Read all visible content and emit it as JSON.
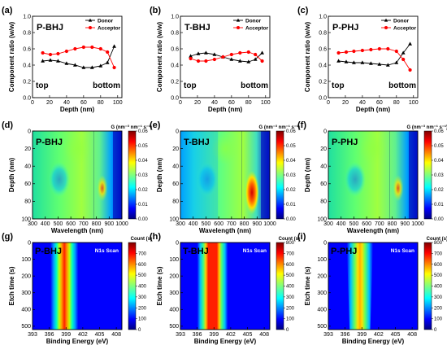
{
  "chart_data": [
    {
      "type": "line",
      "panel_letter": "(a)",
      "label": "P-BHJ",
      "region_labels": {
        "left": "top",
        "right": "bottom"
      },
      "xlabel": "Depth (nm)",
      "ylabel": "Component ratio (w/w)",
      "xlim": [
        0,
        105
      ],
      "ylim": [
        0,
        1
      ],
      "xticks": [
        "0",
        "20",
        "40",
        "60",
        "80",
        "100"
      ],
      "yticks": [
        "0.0",
        "0.2",
        "0.4",
        "0.6",
        "0.8",
        "1.0"
      ],
      "legend_position": "top-right",
      "series": [
        {
          "name": "Donor",
          "color": "#000000",
          "marker": "triangle",
          "points": [
            [
              12,
              0.45
            ],
            [
              21,
              0.46
            ],
            [
              30,
              0.45
            ],
            [
              40,
              0.42
            ],
            [
              50,
              0.4
            ],
            [
              60,
              0.37
            ],
            [
              70,
              0.37
            ],
            [
              80,
              0.39
            ],
            [
              88,
              0.43
            ],
            [
              96,
              0.63
            ]
          ]
        },
        {
          "name": "Acceptor",
          "color": "#ff0000",
          "marker": "circle",
          "points": [
            [
              12,
              0.55
            ],
            [
              21,
              0.53
            ],
            [
              30,
              0.54
            ],
            [
              40,
              0.57
            ],
            [
              50,
              0.6
            ],
            [
              60,
              0.62
            ],
            [
              70,
              0.62
            ],
            [
              80,
              0.6
            ],
            [
              88,
              0.56
            ],
            [
              96,
              0.37
            ]
          ]
        }
      ]
    },
    {
      "type": "line",
      "panel_letter": "(b)",
      "label": "T-BHJ",
      "region_labels": {
        "left": "top",
        "right": "bottom"
      },
      "xlabel": "Depth (nm)",
      "ylabel": "Component ratio (w/w)",
      "xlim": [
        0,
        105
      ],
      "ylim": [
        0,
        1
      ],
      "xticks": [
        "0",
        "20",
        "40",
        "60",
        "80",
        "100"
      ],
      "yticks": [
        "0.0",
        "0.2",
        "0.4",
        "0.6",
        "0.8",
        "1.0"
      ],
      "legend_position": "top-right",
      "series": [
        {
          "name": "Donor",
          "color": "#000000",
          "marker": "triangle",
          "points": [
            [
              12,
              0.51
            ],
            [
              21,
              0.54
            ],
            [
              30,
              0.55
            ],
            [
              40,
              0.53
            ],
            [
              50,
              0.5
            ],
            [
              60,
              0.47
            ],
            [
              70,
              0.45
            ],
            [
              80,
              0.44
            ],
            [
              88,
              0.47
            ],
            [
              96,
              0.55
            ]
          ]
        },
        {
          "name": "Acceptor",
          "color": "#ff0000",
          "marker": "circle",
          "points": [
            [
              12,
              0.48
            ],
            [
              21,
              0.45
            ],
            [
              30,
              0.45
            ],
            [
              40,
              0.47
            ],
            [
              50,
              0.5
            ],
            [
              60,
              0.53
            ],
            [
              70,
              0.55
            ],
            [
              80,
              0.56
            ],
            [
              88,
              0.53
            ],
            [
              96,
              0.45
            ]
          ]
        }
      ]
    },
    {
      "type": "line",
      "panel_letter": "(c)",
      "label": "P-PHJ",
      "region_labels": {
        "left": "top",
        "right": "bottom"
      },
      "xlabel": "Depth (nm)",
      "ylabel": "Component ratio (w/w)",
      "xlim": [
        0,
        105
      ],
      "ylim": [
        0,
        1
      ],
      "xticks": [
        "0",
        "20",
        "40",
        "60",
        "80",
        "100"
      ],
      "yticks": [
        "0.0",
        "0.2",
        "0.4",
        "0.6",
        "0.8",
        "1.0"
      ],
      "legend_position": "top-right",
      "series": [
        {
          "name": "Donor",
          "color": "#000000",
          "marker": "triangle",
          "points": [
            [
              12,
              0.45
            ],
            [
              21,
              0.44
            ],
            [
              30,
              0.43
            ],
            [
              40,
              0.43
            ],
            [
              50,
              0.42
            ],
            [
              60,
              0.41
            ],
            [
              70,
              0.4
            ],
            [
              80,
              0.43
            ],
            [
              88,
              0.55
            ],
            [
              96,
              0.66
            ]
          ]
        },
        {
          "name": "Acceptor",
          "color": "#ff0000",
          "marker": "circle",
          "points": [
            [
              12,
              0.55
            ],
            [
              21,
              0.56
            ],
            [
              30,
              0.57
            ],
            [
              40,
              0.58
            ],
            [
              50,
              0.59
            ],
            [
              60,
              0.6
            ],
            [
              70,
              0.6
            ],
            [
              80,
              0.57
            ],
            [
              88,
              0.47
            ],
            [
              96,
              0.34
            ]
          ]
        }
      ]
    },
    {
      "type": "heatmap",
      "panel_letter": "(d)",
      "label": "P-BHJ",
      "xlabel": "Wavelength (nm)",
      "ylabel": "Depth (nm)",
      "xlim": [
        300,
        1000
      ],
      "ylim": [
        100,
        0
      ],
      "xticks": [
        "300",
        "400",
        "500",
        "600",
        "700",
        "800",
        "900",
        "1000"
      ],
      "yticks": [
        "0",
        "20",
        "40",
        "60",
        "80",
        "100"
      ],
      "colorbar": {
        "title": "G (nm⁻³ nm⁻¹ s⁻¹)",
        "min": 0,
        "max": 0.06,
        "ticks": [
          "0.00",
          "0.01",
          "0.02",
          "0.03",
          "0.04",
          "0.05",
          "0.06"
        ]
      }
    },
    {
      "type": "heatmap",
      "panel_letter": "(e)",
      "label": "T-BHJ",
      "xlabel": "Wavelength (nm)",
      "ylabel": "Depth (nm)",
      "xlim": [
        300,
        1000
      ],
      "ylim": [
        100,
        0
      ],
      "xticks": [
        "300",
        "400",
        "500",
        "600",
        "700",
        "800",
        "900",
        "1000"
      ],
      "yticks": [
        "0",
        "20",
        "40",
        "60",
        "80",
        "100"
      ],
      "colorbar": {
        "title": "G (nm⁻³ nm⁻¹ s⁻¹)",
        "min": 0,
        "max": 0.06,
        "ticks": [
          "0.00",
          "0.01",
          "0.02",
          "0.03",
          "0.04",
          "0.05",
          "0.06"
        ]
      }
    },
    {
      "type": "heatmap",
      "panel_letter": "(f)",
      "label": "P-PHJ",
      "xlabel": "Wavelength (nm)",
      "ylabel": "Depth (nm)",
      "xlim": [
        300,
        1000
      ],
      "ylim": [
        100,
        0
      ],
      "xticks": [
        "300",
        "400",
        "500",
        "600",
        "700",
        "800",
        "900",
        "1000"
      ],
      "yticks": [
        "0",
        "20",
        "40",
        "60",
        "80",
        "100"
      ],
      "colorbar": {
        "title": "G (nm⁻³ nm⁻¹ s⁻¹)",
        "min": 0,
        "max": 0.06,
        "ticks": [
          "0.00",
          "0.01",
          "0.02",
          "0.03",
          "0.04",
          "0.05",
          "0.06"
        ]
      }
    },
    {
      "type": "heatmap",
      "panel_letter": "(g)",
      "label": "P-BHJ",
      "scan_label": "N1s Scan",
      "xlabel": "Binding Energy (eV)",
      "ylabel": "Etch time (s)",
      "xlim": [
        393,
        409
      ],
      "ylim": [
        520,
        0
      ],
      "xticks": [
        "393",
        "396",
        "399",
        "402",
        "405",
        "408"
      ],
      "yticks": [
        "0",
        "100",
        "200",
        "300",
        "400",
        "500"
      ],
      "colorbar": {
        "title": "Count (s)",
        "min": 0,
        "max": 800,
        "ticks": [
          "0",
          "100",
          "200",
          "300",
          "400",
          "500",
          "600",
          "700"
        ]
      }
    },
    {
      "type": "heatmap",
      "panel_letter": "(h)",
      "label": "T-BHJ",
      "scan_label": "N1s Scan",
      "xlabel": "Binding Energy (eV)",
      "ylabel": "Etch time (s)",
      "xlim": [
        393,
        409
      ],
      "ylim": [
        520,
        0
      ],
      "xticks": [
        "393",
        "396",
        "399",
        "402",
        "405",
        "408"
      ],
      "yticks": [
        "0",
        "100",
        "200",
        "300",
        "400",
        "500"
      ],
      "colorbar": {
        "title": "Count (s)",
        "min": 0,
        "max": 800,
        "ticks": [
          "0",
          "100",
          "200",
          "300",
          "400",
          "500",
          "600",
          "700",
          "800"
        ]
      }
    },
    {
      "type": "heatmap",
      "panel_letter": "(i)",
      "label": "P-PHJ",
      "scan_label": "N1s Scan",
      "xlabel": "Binding Energy (eV)",
      "ylabel": "Etch time (s)",
      "xlim": [
        393,
        409
      ],
      "ylim": [
        520,
        0
      ],
      "xticks": [
        "393",
        "396",
        "399",
        "402",
        "405",
        "408"
      ],
      "yticks": [
        "0",
        "100",
        "200",
        "300",
        "400",
        "500"
      ],
      "colorbar": {
        "title": "Count (s)",
        "min": 0,
        "max": 800,
        "ticks": [
          "0",
          "100",
          "200",
          "300",
          "400",
          "500",
          "600",
          "700",
          "800"
        ]
      }
    }
  ]
}
